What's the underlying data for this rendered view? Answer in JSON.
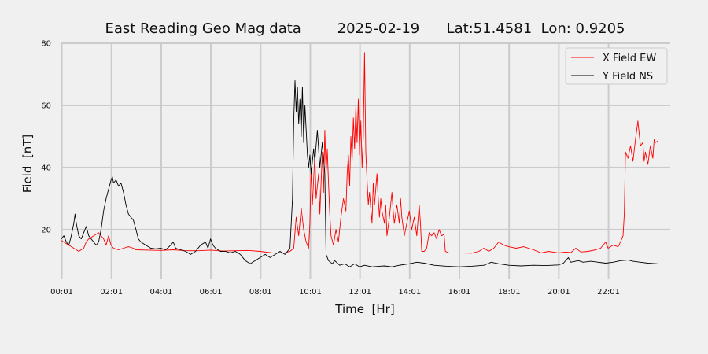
{
  "chart_data": {
    "type": "line",
    "title": "East Reading Geo Mag data        2025-02-19      Lat:51.4581  Lon: 0.9205",
    "xlabel": "Time  [Hr]",
    "ylabel": "Field  [nT]",
    "x_unit": "hours",
    "xlim": [
      0.0,
      24.5
    ],
    "ylim": [
      4,
      80
    ],
    "yticks": [
      20,
      40,
      60,
      80
    ],
    "xtick_values": [
      0.017,
      2.017,
      4.017,
      6.017,
      8.017,
      10.017,
      12.017,
      14.017,
      16.017,
      18.017,
      20.017,
      22.017
    ],
    "xtick_labels": [
      "00:01",
      "02:01",
      "04:01",
      "06:01",
      "08:01",
      "10:01",
      "12:01",
      "14:01",
      "16:01",
      "18:01",
      "20:01",
      "22:01"
    ],
    "grid": true,
    "legend_position": "top-right",
    "series": [
      {
        "name": "X Field EW",
        "color": "#ff0000",
        "points": [
          [
            0.0,
            16.5
          ],
          [
            0.3,
            15
          ],
          [
            0.5,
            14
          ],
          [
            0.7,
            13
          ],
          [
            0.9,
            14
          ],
          [
            1.0,
            16
          ],
          [
            1.1,
            17
          ],
          [
            1.3,
            18
          ],
          [
            1.5,
            19
          ],
          [
            1.7,
            17
          ],
          [
            1.8,
            15
          ],
          [
            1.9,
            18
          ],
          [
            2.0,
            15
          ],
          [
            2.1,
            14
          ],
          [
            2.3,
            13.5
          ],
          [
            2.5,
            14
          ],
          [
            2.7,
            14.5
          ],
          [
            2.9,
            14
          ],
          [
            3.0,
            13.5
          ],
          [
            3.5,
            13.4
          ],
          [
            4.0,
            13.3
          ],
          [
            4.5,
            13.5
          ],
          [
            5.0,
            13.2
          ],
          [
            5.5,
            13.2
          ],
          [
            6.0,
            13.4
          ],
          [
            6.5,
            13.1
          ],
          [
            7.0,
            13.2
          ],
          [
            7.5,
            13.3
          ],
          [
            8.0,
            13.0
          ],
          [
            8.5,
            12.5
          ],
          [
            9.0,
            12.5
          ],
          [
            9.2,
            13
          ],
          [
            9.35,
            14
          ],
          [
            9.45,
            24
          ],
          [
            9.55,
            18
          ],
          [
            9.65,
            27
          ],
          [
            9.75,
            20
          ],
          [
            9.85,
            16
          ],
          [
            9.95,
            14
          ],
          [
            10.0,
            22
          ],
          [
            10.05,
            40
          ],
          [
            10.1,
            28
          ],
          [
            10.2,
            44
          ],
          [
            10.25,
            30
          ],
          [
            10.35,
            38
          ],
          [
            10.4,
            25
          ],
          [
            10.5,
            45
          ],
          [
            10.55,
            32
          ],
          [
            10.6,
            52
          ],
          [
            10.65,
            38
          ],
          [
            10.7,
            46
          ],
          [
            10.75,
            35
          ],
          [
            10.8,
            25
          ],
          [
            10.85,
            18
          ],
          [
            10.95,
            15
          ],
          [
            11.05,
            20
          ],
          [
            11.15,
            16
          ],
          [
            11.25,
            24
          ],
          [
            11.35,
            30
          ],
          [
            11.45,
            26
          ],
          [
            11.5,
            38
          ],
          [
            11.55,
            44
          ],
          [
            11.6,
            34
          ],
          [
            11.65,
            50
          ],
          [
            11.7,
            42
          ],
          [
            11.75,
            56
          ],
          [
            11.8,
            46
          ],
          [
            11.85,
            60
          ],
          [
            11.9,
            48
          ],
          [
            11.95,
            62
          ],
          [
            12.0,
            44
          ],
          [
            12.05,
            55
          ],
          [
            12.1,
            40
          ],
          [
            12.15,
            50
          ],
          [
            12.2,
            77
          ],
          [
            12.25,
            45
          ],
          [
            12.3,
            36
          ],
          [
            12.35,
            28
          ],
          [
            12.4,
            32
          ],
          [
            12.5,
            22
          ],
          [
            12.55,
            35
          ],
          [
            12.6,
            28
          ],
          [
            12.7,
            38
          ],
          [
            12.75,
            30
          ],
          [
            12.8,
            24
          ],
          [
            12.85,
            30
          ],
          [
            12.9,
            26
          ],
          [
            13.0,
            22
          ],
          [
            13.05,
            28
          ],
          [
            13.1,
            18
          ],
          [
            13.2,
            24
          ],
          [
            13.3,
            32
          ],
          [
            13.35,
            26
          ],
          [
            13.4,
            22
          ],
          [
            13.5,
            28
          ],
          [
            13.6,
            22
          ],
          [
            13.65,
            30
          ],
          [
            13.7,
            24
          ],
          [
            13.8,
            18
          ],
          [
            13.9,
            22
          ],
          [
            14.0,
            26
          ],
          [
            14.1,
            20
          ],
          [
            14.2,
            24
          ],
          [
            14.3,
            18
          ],
          [
            14.4,
            28
          ],
          [
            14.45,
            22
          ],
          [
            14.5,
            13
          ],
          [
            14.6,
            13
          ],
          [
            14.7,
            14
          ],
          [
            14.8,
            19
          ],
          [
            14.9,
            18
          ],
          [
            15.0,
            19
          ],
          [
            15.1,
            17
          ],
          [
            15.2,
            20
          ],
          [
            15.3,
            18
          ],
          [
            15.4,
            18.5
          ],
          [
            15.45,
            13
          ],
          [
            15.6,
            12.5
          ],
          [
            16.0,
            12.5
          ],
          [
            16.5,
            12.4
          ],
          [
            16.8,
            13
          ],
          [
            17.0,
            14
          ],
          [
            17.2,
            13
          ],
          [
            17.4,
            14
          ],
          [
            17.6,
            16
          ],
          [
            17.8,
            15
          ],
          [
            18.0,
            14.5
          ],
          [
            18.3,
            14
          ],
          [
            18.6,
            14.5
          ],
          [
            19.0,
            13.5
          ],
          [
            19.3,
            12.5
          ],
          [
            19.6,
            13
          ],
          [
            20.0,
            12.5
          ],
          [
            20.3,
            12.8
          ],
          [
            20.5,
            12.6
          ],
          [
            20.7,
            14
          ],
          [
            20.9,
            12.8
          ],
          [
            21.2,
            13
          ],
          [
            21.5,
            13.5
          ],
          [
            21.7,
            14
          ],
          [
            21.9,
            16
          ],
          [
            22.0,
            14
          ],
          [
            22.2,
            15
          ],
          [
            22.4,
            14.5
          ],
          [
            22.5,
            16
          ],
          [
            22.6,
            18
          ],
          [
            22.65,
            25
          ],
          [
            22.7,
            45
          ],
          [
            22.8,
            43
          ],
          [
            22.9,
            47
          ],
          [
            23.0,
            42
          ],
          [
            23.1,
            49
          ],
          [
            23.2,
            55
          ],
          [
            23.3,
            47
          ],
          [
            23.4,
            48
          ],
          [
            23.45,
            42
          ],
          [
            23.5,
            45
          ],
          [
            23.6,
            41
          ],
          [
            23.7,
            47
          ],
          [
            23.8,
            43
          ],
          [
            23.85,
            49
          ],
          [
            23.9,
            48
          ],
          [
            24.0,
            48.5
          ]
        ]
      },
      {
        "name": "Y Field NS",
        "color": "#000000",
        "points": [
          [
            0.0,
            17
          ],
          [
            0.1,
            18
          ],
          [
            0.2,
            16
          ],
          [
            0.3,
            15
          ],
          [
            0.4,
            18
          ],
          [
            0.5,
            22
          ],
          [
            0.55,
            25
          ],
          [
            0.6,
            22
          ],
          [
            0.7,
            18
          ],
          [
            0.8,
            17
          ],
          [
            0.9,
            19
          ],
          [
            1.0,
            21
          ],
          [
            1.1,
            18
          ],
          [
            1.2,
            17
          ],
          [
            1.3,
            16
          ],
          [
            1.4,
            15
          ],
          [
            1.5,
            16
          ],
          [
            1.6,
            20
          ],
          [
            1.7,
            26
          ],
          [
            1.8,
            30
          ],
          [
            1.9,
            33
          ],
          [
            2.0,
            36
          ],
          [
            2.05,
            37
          ],
          [
            2.1,
            35
          ],
          [
            2.2,
            36
          ],
          [
            2.3,
            34
          ],
          [
            2.4,
            35
          ],
          [
            2.5,
            32
          ],
          [
            2.6,
            28
          ],
          [
            2.7,
            25
          ],
          [
            2.8,
            24
          ],
          [
            2.9,
            23
          ],
          [
            3.0,
            20
          ],
          [
            3.1,
            17
          ],
          [
            3.2,
            16
          ],
          [
            3.4,
            15
          ],
          [
            3.6,
            14
          ],
          [
            3.8,
            13.8
          ],
          [
            4.0,
            14
          ],
          [
            4.2,
            13.5
          ],
          [
            4.4,
            15
          ],
          [
            4.5,
            16
          ],
          [
            4.6,
            14
          ],
          [
            4.8,
            13.5
          ],
          [
            5.0,
            13
          ],
          [
            5.2,
            12
          ],
          [
            5.4,
            13
          ],
          [
            5.6,
            15
          ],
          [
            5.8,
            16
          ],
          [
            5.9,
            14
          ],
          [
            6.0,
            17
          ],
          [
            6.1,
            15
          ],
          [
            6.2,
            14
          ],
          [
            6.4,
            13
          ],
          [
            6.6,
            13
          ],
          [
            6.8,
            12.5
          ],
          [
            7.0,
            13
          ],
          [
            7.2,
            12
          ],
          [
            7.4,
            10
          ],
          [
            7.6,
            9
          ],
          [
            7.8,
            10
          ],
          [
            8.0,
            11
          ],
          [
            8.2,
            12
          ],
          [
            8.4,
            11
          ],
          [
            8.6,
            12
          ],
          [
            8.8,
            13
          ],
          [
            9.0,
            12
          ],
          [
            9.2,
            14
          ],
          [
            9.3,
            30
          ],
          [
            9.35,
            55
          ],
          [
            9.4,
            68
          ],
          [
            9.45,
            58
          ],
          [
            9.5,
            66
          ],
          [
            9.55,
            54
          ],
          [
            9.6,
            62
          ],
          [
            9.65,
            50
          ],
          [
            9.7,
            66
          ],
          [
            9.75,
            48
          ],
          [
            9.8,
            60
          ],
          [
            9.85,
            52
          ],
          [
            9.9,
            44
          ],
          [
            9.95,
            40
          ],
          [
            10.0,
            44
          ],
          [
            10.05,
            38
          ],
          [
            10.15,
            46
          ],
          [
            10.2,
            42
          ],
          [
            10.3,
            52
          ],
          [
            10.4,
            40
          ],
          [
            10.5,
            48
          ],
          [
            10.6,
            38
          ],
          [
            10.65,
            12
          ],
          [
            10.75,
            10
          ],
          [
            10.9,
            9
          ],
          [
            11.0,
            10
          ],
          [
            11.2,
            8.5
          ],
          [
            11.4,
            9
          ],
          [
            11.6,
            8
          ],
          [
            11.8,
            9
          ],
          [
            12.0,
            8
          ],
          [
            12.2,
            8.5
          ],
          [
            12.5,
            8
          ],
          [
            12.8,
            8.2
          ],
          [
            13.0,
            8.3
          ],
          [
            13.3,
            8
          ],
          [
            13.6,
            8.5
          ],
          [
            14.0,
            9
          ],
          [
            14.3,
            9.5
          ],
          [
            14.6,
            9.2
          ],
          [
            15.0,
            8.5
          ],
          [
            15.5,
            8.2
          ],
          [
            16.0,
            8
          ],
          [
            16.5,
            8.2
          ],
          [
            17.0,
            8.5
          ],
          [
            17.3,
            9.5
          ],
          [
            17.6,
            9
          ],
          [
            18.0,
            8.5
          ],
          [
            18.5,
            8.3
          ],
          [
            19.0,
            8.5
          ],
          [
            19.5,
            8.4
          ],
          [
            20.0,
            8.6
          ],
          [
            20.2,
            9.2
          ],
          [
            20.4,
            11
          ],
          [
            20.5,
            9.5
          ],
          [
            20.8,
            10
          ],
          [
            21.0,
            9.5
          ],
          [
            21.3,
            9.8
          ],
          [
            21.6,
            9.5
          ],
          [
            21.9,
            9.2
          ],
          [
            22.2,
            9.5
          ],
          [
            22.5,
            10
          ],
          [
            22.8,
            10.2
          ],
          [
            23.0,
            9.8
          ],
          [
            23.3,
            9.5
          ],
          [
            23.6,
            9.2
          ],
          [
            24.0,
            9
          ]
        ]
      }
    ]
  }
}
